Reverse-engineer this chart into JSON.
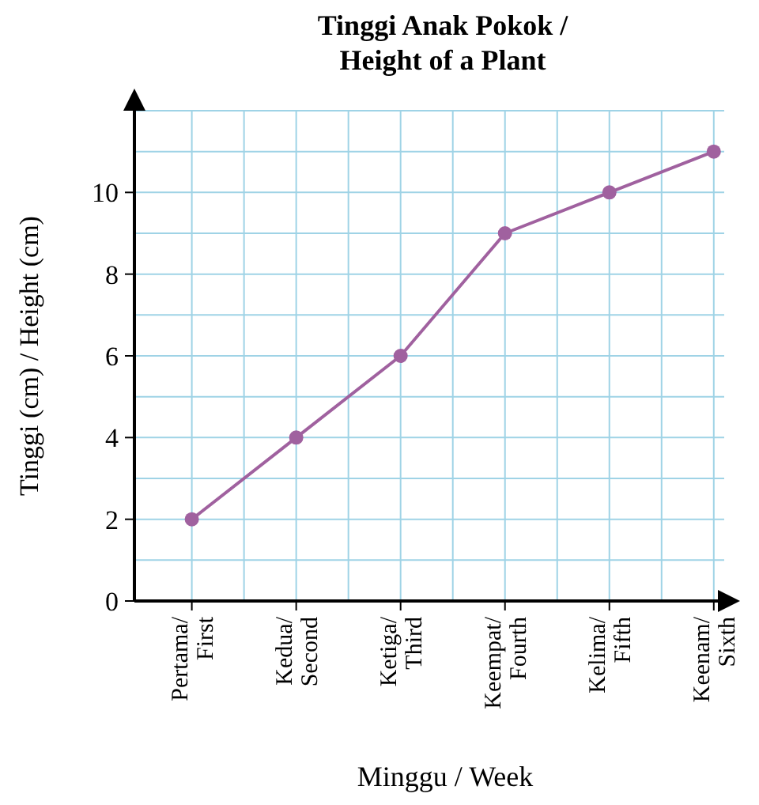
{
  "chart_data": {
    "type": "line",
    "title": "Tinggi Anak Pokok / Height of a Plant",
    "xlabel": "Minggu / Week",
    "ylabel": "Tinggi (cm) / Height (cm)",
    "categories": [
      "Pertama/ First",
      "Kedua/ Second",
      "Ketiga/ Third",
      "Keempat/ Fourth",
      "Kelima/ Fifth",
      "Keenam/ Sixth"
    ],
    "series": [
      {
        "color": "#a0619f",
        "values": [
          2,
          4,
          6,
          9,
          10,
          11
        ]
      }
    ],
    "ylim": [
      0,
      12
    ],
    "yticks": [
      0,
      {
        "value": 1,
        "label": null
      },
      2,
      {
        "value": 3,
        "label": null
      },
      4,
      {
        "value": 5,
        "label": null
      },
      6,
      {
        "value": 7,
        "label": null
      },
      8,
      {
        "value": 9,
        "label": null
      },
      10,
      {
        "value": 11,
        "label": null
      }
    ],
    "grid": true,
    "marker": "circle",
    "line_style": "solid"
  }
}
